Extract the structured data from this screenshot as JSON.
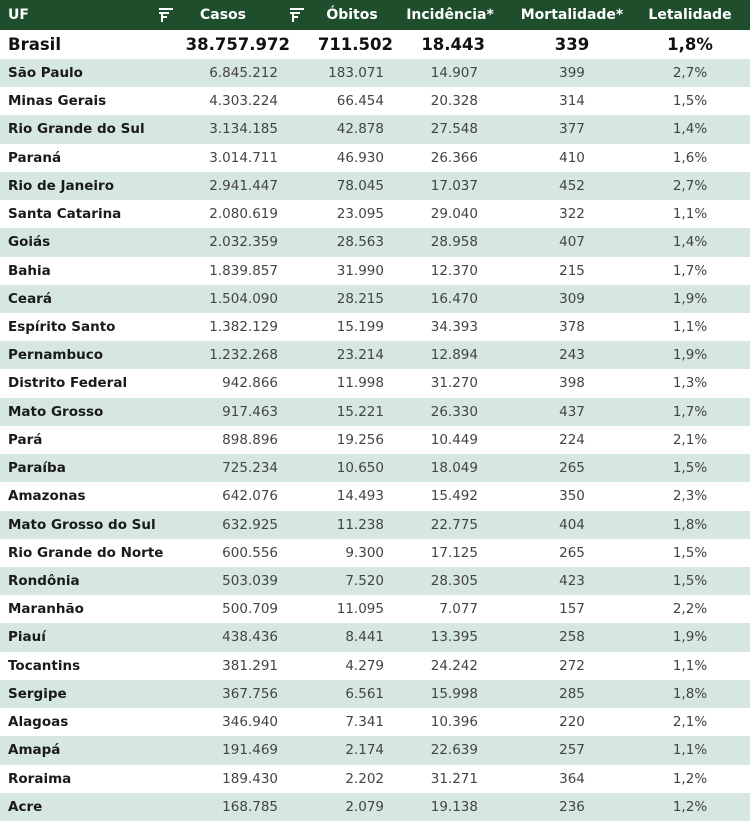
{
  "header": {
    "columns": [
      "UF",
      "Casos",
      "Óbitos",
      "Incidência*",
      "Mortalidade*",
      "Letalidade"
    ]
  },
  "total": [
    "Brasil",
    "38.757.972",
    "711.502",
    "18.443",
    "339",
    "1,8%"
  ],
  "rows": [
    [
      "São Paulo",
      "6.845.212",
      "183.071",
      "14.907",
      "399",
      "2,7%"
    ],
    [
      "Minas Gerais",
      "4.303.224",
      "66.454",
      "20.328",
      "314",
      "1,5%"
    ],
    [
      "Rio Grande do Sul",
      "3.134.185",
      "42.878",
      "27.548",
      "377",
      "1,4%"
    ],
    [
      "Paraná",
      "3.014.711",
      "46.930",
      "26.366",
      "410",
      "1,6%"
    ],
    [
      "Rio de Janeiro",
      "2.941.447",
      "78.045",
      "17.037",
      "452",
      "2,7%"
    ],
    [
      "Santa Catarina",
      "2.080.619",
      "23.095",
      "29.040",
      "322",
      "1,1%"
    ],
    [
      "Goiás",
      "2.032.359",
      "28.563",
      "28.958",
      "407",
      "1,4%"
    ],
    [
      "Bahia",
      "1.839.857",
      "31.990",
      "12.370",
      "215",
      "1,7%"
    ],
    [
      "Ceará",
      "1.504.090",
      "28.215",
      "16.470",
      "309",
      "1,9%"
    ],
    [
      "Espírito Santo",
      "1.382.129",
      "15.199",
      "34.393",
      "378",
      "1,1%"
    ],
    [
      "Pernambuco",
      "1.232.268",
      "23.214",
      "12.894",
      "243",
      "1,9%"
    ],
    [
      "Distrito Federal",
      "942.866",
      "11.998",
      "31.270",
      "398",
      "1,3%"
    ],
    [
      "Mato Grosso",
      "917.463",
      "15.221",
      "26.330",
      "437",
      "1,7%"
    ],
    [
      "Pará",
      "898.896",
      "19.256",
      "10.449",
      "224",
      "2,1%"
    ],
    [
      "Paraíba",
      "725.234",
      "10.650",
      "18.049",
      "265",
      "1,5%"
    ],
    [
      "Amazonas",
      "642.076",
      "14.493",
      "15.492",
      "350",
      "2,3%"
    ],
    [
      "Mato Grosso do Sul",
      "632.925",
      "11.238",
      "22.775",
      "404",
      "1,8%"
    ],
    [
      "Rio Grande do Norte",
      "600.556",
      "9.300",
      "17.125",
      "265",
      "1,5%"
    ],
    [
      "Rondônia",
      "503.039",
      "7.520",
      "28.305",
      "423",
      "1,5%"
    ],
    [
      "Maranhão",
      "500.709",
      "11.095",
      "7.077",
      "157",
      "2,2%"
    ],
    [
      "Piauí",
      "438.436",
      "8.441",
      "13.395",
      "258",
      "1,9%"
    ],
    [
      "Tocantins",
      "381.291",
      "4.279",
      "24.242",
      "272",
      "1,1%"
    ],
    [
      "Sergipe",
      "367.756",
      "6.561",
      "15.998",
      "285",
      "1,8%"
    ],
    [
      "Alagoas",
      "346.940",
      "7.341",
      "10.396",
      "220",
      "2,1%"
    ],
    [
      "Amapá",
      "191.469",
      "2.174",
      "22.639",
      "257",
      "1,1%"
    ],
    [
      "Roraima",
      "189.430",
      "2.202",
      "31.271",
      "364",
      "1,2%"
    ],
    [
      "Acre",
      "168.785",
      "2.079",
      "19.138",
      "236",
      "1,2%"
    ]
  ]
}
